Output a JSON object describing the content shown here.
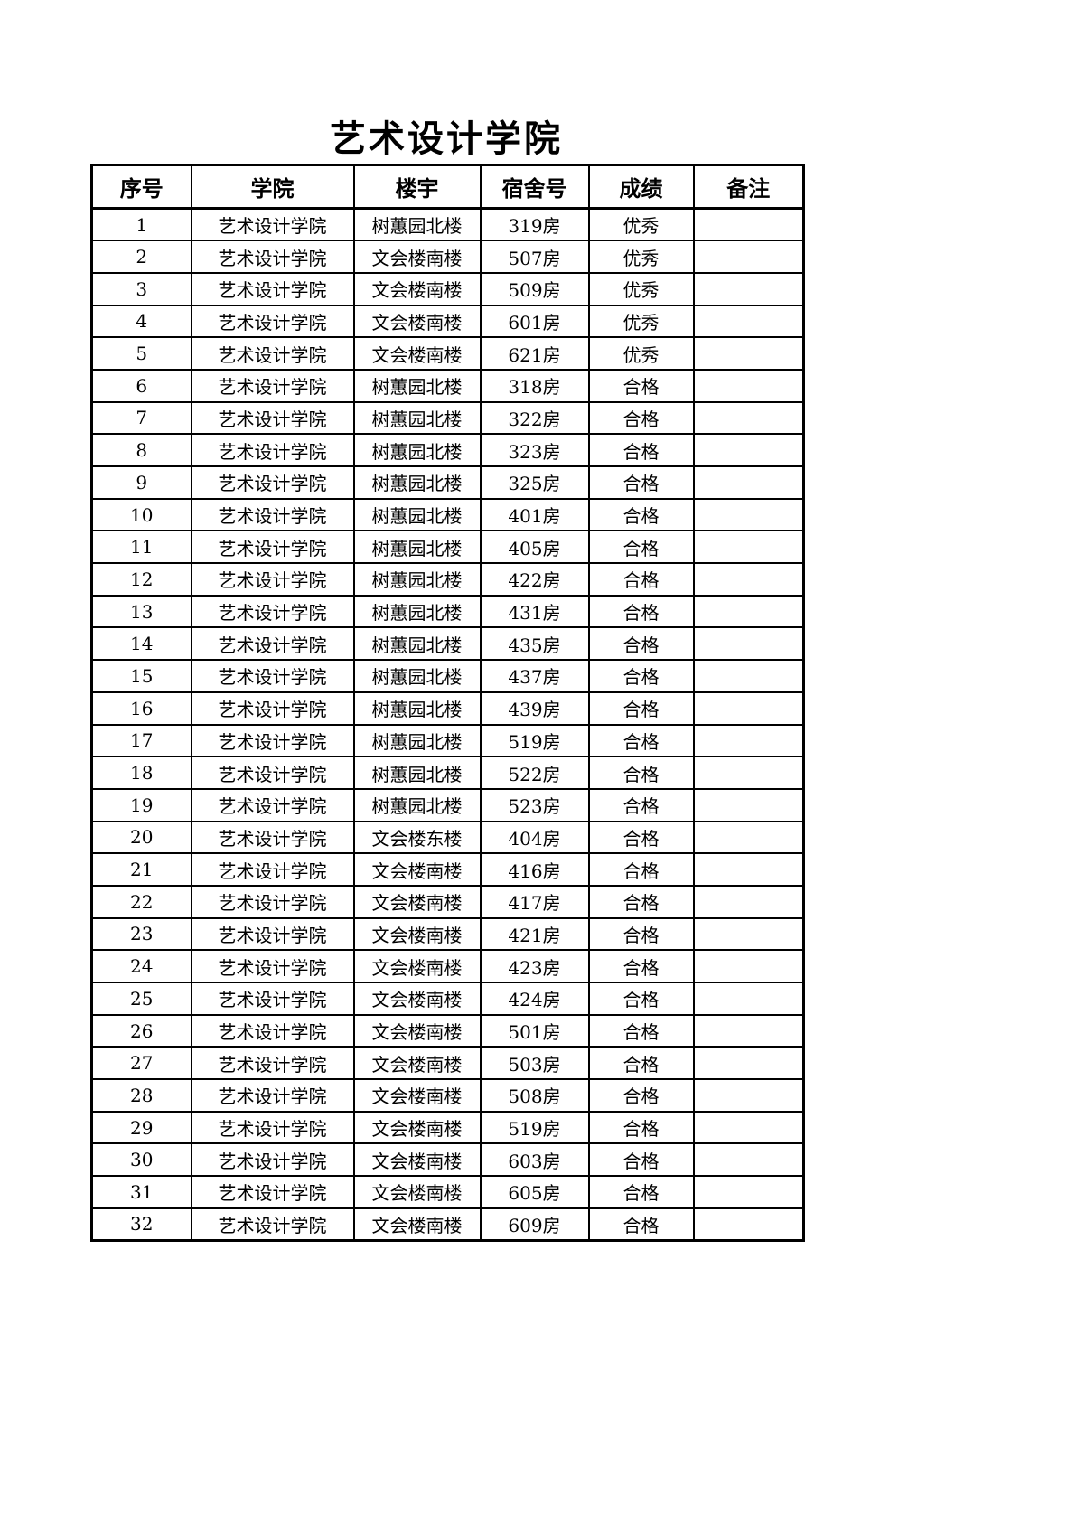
{
  "page": {
    "title": "艺术设计学院"
  },
  "table": {
    "columns": [
      "序号",
      "学院",
      "楼宇",
      "宿舍号",
      "成绩",
      "备注"
    ],
    "rows": [
      {
        "no": "1",
        "college": "艺术设计学院",
        "building": "树蕙园北楼",
        "room": "319房",
        "grade": "优秀",
        "remark": ""
      },
      {
        "no": "2",
        "college": "艺术设计学院",
        "building": "文会楼南楼",
        "room": "507房",
        "grade": "优秀",
        "remark": ""
      },
      {
        "no": "3",
        "college": "艺术设计学院",
        "building": "文会楼南楼",
        "room": "509房",
        "grade": "优秀",
        "remark": ""
      },
      {
        "no": "4",
        "college": "艺术设计学院",
        "building": "文会楼南楼",
        "room": "601房",
        "grade": "优秀",
        "remark": ""
      },
      {
        "no": "5",
        "college": "艺术设计学院",
        "building": "文会楼南楼",
        "room": "621房",
        "grade": "优秀",
        "remark": ""
      },
      {
        "no": "6",
        "college": "艺术设计学院",
        "building": "树蕙园北楼",
        "room": "318房",
        "grade": "合格",
        "remark": ""
      },
      {
        "no": "7",
        "college": "艺术设计学院",
        "building": "树蕙园北楼",
        "room": "322房",
        "grade": "合格",
        "remark": ""
      },
      {
        "no": "8",
        "college": "艺术设计学院",
        "building": "树蕙园北楼",
        "room": "323房",
        "grade": "合格",
        "remark": ""
      },
      {
        "no": "9",
        "college": "艺术设计学院",
        "building": "树蕙园北楼",
        "room": "325房",
        "grade": "合格",
        "remark": ""
      },
      {
        "no": "10",
        "college": "艺术设计学院",
        "building": "树蕙园北楼",
        "room": "401房",
        "grade": "合格",
        "remark": ""
      },
      {
        "no": "11",
        "college": "艺术设计学院",
        "building": "树蕙园北楼",
        "room": "405房",
        "grade": "合格",
        "remark": ""
      },
      {
        "no": "12",
        "college": "艺术设计学院",
        "building": "树蕙园北楼",
        "room": "422房",
        "grade": "合格",
        "remark": ""
      },
      {
        "no": "13",
        "college": "艺术设计学院",
        "building": "树蕙园北楼",
        "room": "431房",
        "grade": "合格",
        "remark": ""
      },
      {
        "no": "14",
        "college": "艺术设计学院",
        "building": "树蕙园北楼",
        "room": "435房",
        "grade": "合格",
        "remark": ""
      },
      {
        "no": "15",
        "college": "艺术设计学院",
        "building": "树蕙园北楼",
        "room": "437房",
        "grade": "合格",
        "remark": ""
      },
      {
        "no": "16",
        "college": "艺术设计学院",
        "building": "树蕙园北楼",
        "room": "439房",
        "grade": "合格",
        "remark": ""
      },
      {
        "no": "17",
        "college": "艺术设计学院",
        "building": "树蕙园北楼",
        "room": "519房",
        "grade": "合格",
        "remark": ""
      },
      {
        "no": "18",
        "college": "艺术设计学院",
        "building": "树蕙园北楼",
        "room": "522房",
        "grade": "合格",
        "remark": ""
      },
      {
        "no": "19",
        "college": "艺术设计学院",
        "building": "树蕙园北楼",
        "room": "523房",
        "grade": "合格",
        "remark": ""
      },
      {
        "no": "20",
        "college": "艺术设计学院",
        "building": "文会楼东楼",
        "room": "404房",
        "grade": "合格",
        "remark": ""
      },
      {
        "no": "21",
        "college": "艺术设计学院",
        "building": "文会楼南楼",
        "room": "416房",
        "grade": "合格",
        "remark": ""
      },
      {
        "no": "22",
        "college": "艺术设计学院",
        "building": "文会楼南楼",
        "room": "417房",
        "grade": "合格",
        "remark": ""
      },
      {
        "no": "23",
        "college": "艺术设计学院",
        "building": "文会楼南楼",
        "room": "421房",
        "grade": "合格",
        "remark": ""
      },
      {
        "no": "24",
        "college": "艺术设计学院",
        "building": "文会楼南楼",
        "room": "423房",
        "grade": "合格",
        "remark": ""
      },
      {
        "no": "25",
        "college": "艺术设计学院",
        "building": "文会楼南楼",
        "room": "424房",
        "grade": "合格",
        "remark": ""
      },
      {
        "no": "26",
        "college": "艺术设计学院",
        "building": "文会楼南楼",
        "room": "501房",
        "grade": "合格",
        "remark": ""
      },
      {
        "no": "27",
        "college": "艺术设计学院",
        "building": "文会楼南楼",
        "room": "503房",
        "grade": "合格",
        "remark": ""
      },
      {
        "no": "28",
        "college": "艺术设计学院",
        "building": "文会楼南楼",
        "room": "508房",
        "grade": "合格",
        "remark": ""
      },
      {
        "no": "29",
        "college": "艺术设计学院",
        "building": "文会楼南楼",
        "room": "519房",
        "grade": "合格",
        "remark": ""
      },
      {
        "no": "30",
        "college": "艺术设计学院",
        "building": "文会楼南楼",
        "room": "603房",
        "grade": "合格",
        "remark": ""
      },
      {
        "no": "31",
        "college": "艺术设计学院",
        "building": "文会楼南楼",
        "room": "605房",
        "grade": "合格",
        "remark": ""
      },
      {
        "no": "32",
        "college": "艺术设计学院",
        "building": "文会楼南楼",
        "room": "609房",
        "grade": "合格",
        "remark": ""
      }
    ]
  }
}
